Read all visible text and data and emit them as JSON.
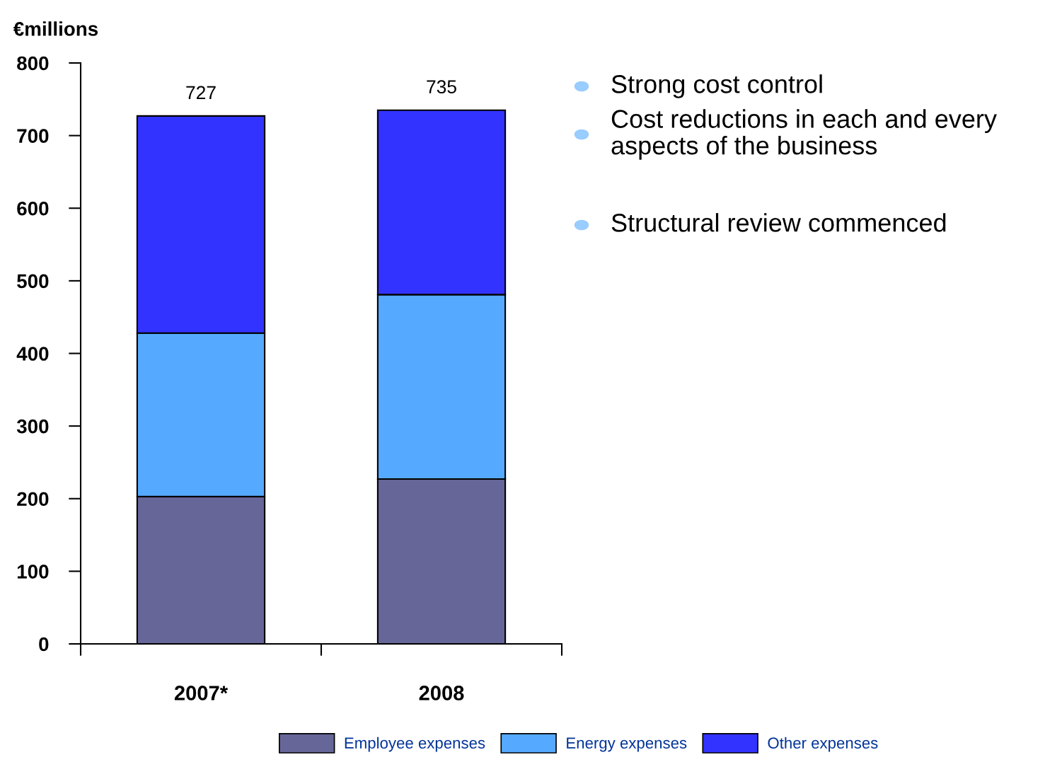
{
  "chart_data": {
    "type": "bar",
    "stacked": true,
    "ylabel": "€millions",
    "categories": [
      "2007*",
      "2008"
    ],
    "series": [
      {
        "name": "Employee expenses",
        "color": "#666699",
        "values": [
          203,
          227
        ]
      },
      {
        "name": "Energy expenses",
        "color": "#55aaff",
        "values": [
          225,
          254
        ]
      },
      {
        "name": "Other expenses",
        "color": "#3333ff",
        "values": [
          299,
          254
        ]
      }
    ],
    "totals": [
      "727",
      "735"
    ],
    "ylim": [
      0,
      800
    ],
    "yticks": [
      0,
      100,
      200,
      300,
      400,
      500,
      600,
      700,
      800
    ],
    "grid": false,
    "legend": "bottom",
    "annotations": [
      "Strong cost control",
      "Cost reductions in each and every aspects of the business",
      "Structural review commenced"
    ]
  }
}
